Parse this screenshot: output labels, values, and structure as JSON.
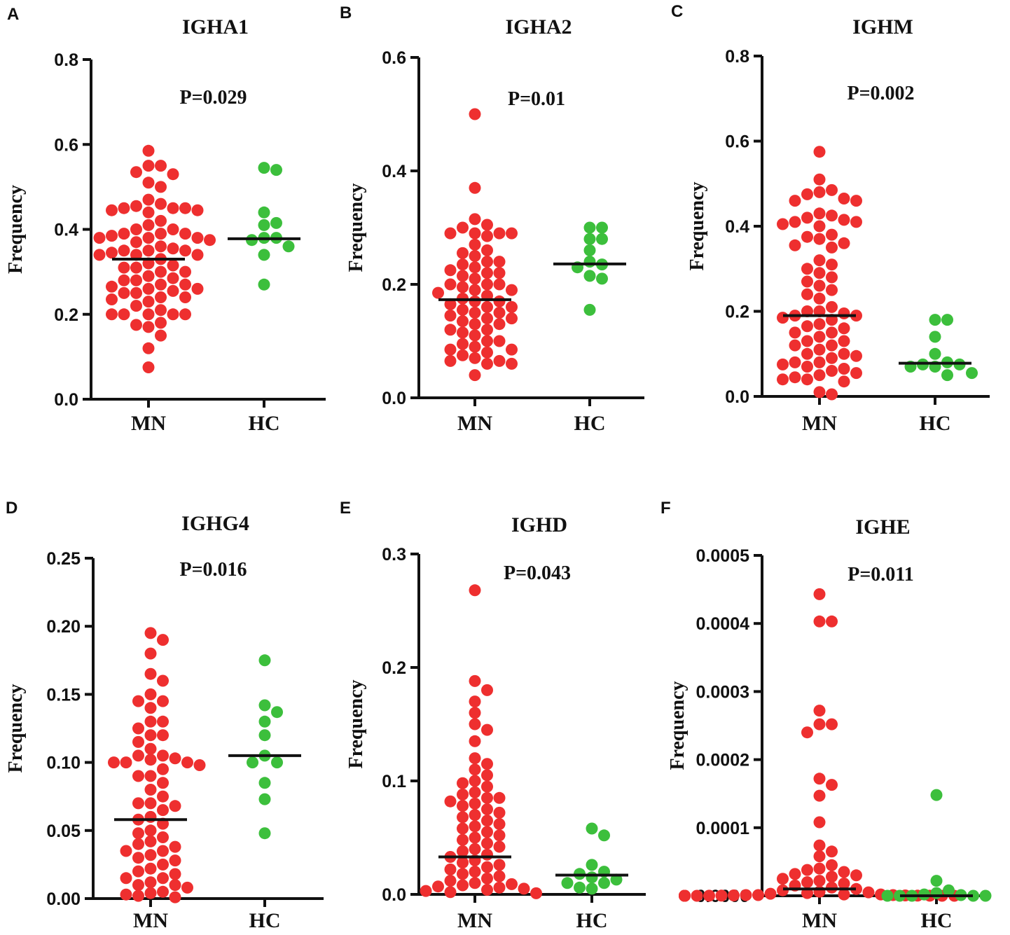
{
  "colors": {
    "MN": "#ee2f2f",
    "HC": "#3cbf3c",
    "axis": "#111111"
  },
  "chart_data": [
    {
      "type": "scatter",
      "panel": "A",
      "title": "IGHA1",
      "p_value": "P=0.029",
      "ylabel": "Frequency",
      "ylim": [
        0,
        0.8
      ],
      "yticks": [
        "0.0",
        "0.2",
        "0.4",
        "0.6",
        "0.8"
      ],
      "categories": [
        "MN",
        "HC"
      ],
      "series": [
        {
          "name": "MN",
          "median": 0.33,
          "values": [
            0.585,
            0.55,
            0.55,
            0.53,
            0.535,
            0.51,
            0.5,
            0.47,
            0.46,
            0.455,
            0.45,
            0.45,
            0.45,
            0.445,
            0.445,
            0.44,
            0.42,
            0.41,
            0.4,
            0.4,
            0.39,
            0.39,
            0.39,
            0.385,
            0.38,
            0.38,
            0.38,
            0.375,
            0.37,
            0.36,
            0.355,
            0.35,
            0.35,
            0.35,
            0.345,
            0.34,
            0.34,
            0.34,
            0.33,
            0.32,
            0.315,
            0.31,
            0.31,
            0.3,
            0.3,
            0.29,
            0.285,
            0.28,
            0.28,
            0.27,
            0.27,
            0.265,
            0.26,
            0.26,
            0.255,
            0.25,
            0.25,
            0.24,
            0.24,
            0.235,
            0.23,
            0.22,
            0.21,
            0.2,
            0.2,
            0.2,
            0.2,
            0.2,
            0.18,
            0.175,
            0.17,
            0.15,
            0.12,
            0.075
          ]
        },
        {
          "name": "HC",
          "median": 0.378,
          "values": [
            0.545,
            0.54,
            0.44,
            0.41,
            0.415,
            0.38,
            0.38,
            0.375,
            0.36,
            0.34,
            0.27
          ]
        }
      ]
    },
    {
      "type": "scatter",
      "panel": "B",
      "title": "IGHA2",
      "p_value": "P=0.01",
      "ylabel": "Frequency",
      "ylim": [
        0,
        0.6
      ],
      "yticks": [
        "0.0",
        "0.2",
        "0.4",
        "0.6"
      ],
      "categories": [
        "MN",
        "HC"
      ],
      "series": [
        {
          "name": "MN",
          "median": 0.173,
          "values": [
            0.5,
            0.37,
            0.315,
            0.305,
            0.3,
            0.29,
            0.29,
            0.29,
            0.29,
            0.285,
            0.27,
            0.26,
            0.255,
            0.25,
            0.24,
            0.24,
            0.235,
            0.23,
            0.225,
            0.22,
            0.22,
            0.215,
            0.21,
            0.2,
            0.2,
            0.2,
            0.195,
            0.19,
            0.19,
            0.185,
            0.18,
            0.175,
            0.17,
            0.17,
            0.165,
            0.16,
            0.16,
            0.155,
            0.15,
            0.15,
            0.145,
            0.14,
            0.14,
            0.135,
            0.13,
            0.13,
            0.12,
            0.12,
            0.115,
            0.11,
            0.1,
            0.1,
            0.095,
            0.09,
            0.085,
            0.085,
            0.08,
            0.075,
            0.07,
            0.065,
            0.065,
            0.06,
            0.06,
            0.04
          ]
        },
        {
          "name": "HC",
          "median": 0.236,
          "values": [
            0.3,
            0.3,
            0.28,
            0.28,
            0.26,
            0.24,
            0.235,
            0.23,
            0.215,
            0.21,
            0.155
          ]
        }
      ]
    },
    {
      "type": "scatter",
      "panel": "C",
      "title": "IGHM",
      "p_value": "P=0.002",
      "ylabel": "Frequency",
      "ylim": [
        0,
        0.8
      ],
      "yticks": [
        "0.0",
        "0.2",
        "0.4",
        "0.6",
        "0.8"
      ],
      "categories": [
        "MN",
        "HC"
      ],
      "series": [
        {
          "name": "MN",
          "median": 0.19,
          "values": [
            0.575,
            0.51,
            0.485,
            0.48,
            0.475,
            0.465,
            0.46,
            0.46,
            0.43,
            0.425,
            0.42,
            0.415,
            0.41,
            0.41,
            0.405,
            0.4,
            0.38,
            0.375,
            0.37,
            0.36,
            0.355,
            0.35,
            0.32,
            0.31,
            0.3,
            0.29,
            0.28,
            0.27,
            0.26,
            0.25,
            0.24,
            0.23,
            0.21,
            0.2,
            0.2,
            0.195,
            0.19,
            0.19,
            0.185,
            0.18,
            0.17,
            0.165,
            0.16,
            0.15,
            0.15,
            0.14,
            0.13,
            0.13,
            0.12,
            0.12,
            0.11,
            0.1,
            0.1,
            0.095,
            0.09,
            0.08,
            0.08,
            0.075,
            0.07,
            0.065,
            0.06,
            0.055,
            0.05,
            0.045,
            0.04,
            0.04,
            0.035,
            0.01,
            0.005
          ]
        },
        {
          "name": "HC",
          "median": 0.078,
          "values": [
            0.18,
            0.18,
            0.14,
            0.1,
            0.08,
            0.075,
            0.075,
            0.07,
            0.07,
            0.055,
            0.05
          ]
        }
      ]
    },
    {
      "type": "scatter",
      "panel": "D",
      "title": "IGHG4",
      "p_value": "P=0.016",
      "ylabel": "Frequency",
      "ylim": [
        0,
        0.25
      ],
      "yticks": [
        "0.00",
        "0.05",
        "0.10",
        "0.15",
        "0.20",
        "0.25"
      ],
      "categories": [
        "MN",
        "HC"
      ],
      "series": [
        {
          "name": "MN",
          "median": 0.058,
          "values": [
            0.195,
            0.19,
            0.18,
            0.165,
            0.16,
            0.15,
            0.145,
            0.145,
            0.14,
            0.13,
            0.13,
            0.125,
            0.12,
            0.12,
            0.115,
            0.11,
            0.105,
            0.105,
            0.103,
            0.102,
            0.1,
            0.1,
            0.1,
            0.098,
            0.095,
            0.09,
            0.09,
            0.085,
            0.08,
            0.075,
            0.07,
            0.07,
            0.068,
            0.065,
            0.06,
            0.058,
            0.055,
            0.05,
            0.048,
            0.045,
            0.042,
            0.04,
            0.038,
            0.035,
            0.035,
            0.032,
            0.03,
            0.028,
            0.025,
            0.022,
            0.02,
            0.018,
            0.015,
            0.015,
            0.012,
            0.01,
            0.01,
            0.008,
            0.005,
            0.004,
            0.003,
            0.002,
            0.001
          ]
        },
        {
          "name": "HC",
          "median": 0.105,
          "values": [
            0.175,
            0.142,
            0.137,
            0.13,
            0.12,
            0.105,
            0.1,
            0.1,
            0.085,
            0.073,
            0.048
          ]
        }
      ]
    },
    {
      "type": "scatter",
      "panel": "E",
      "title": "IGHD",
      "p_value": "P=0.043",
      "ylabel": "Frequency",
      "ylim": [
        0,
        0.3
      ],
      "yticks": [
        "0.0",
        "0.1",
        "0.2",
        "0.3"
      ],
      "categories": [
        "MN",
        "HC"
      ],
      "series": [
        {
          "name": "MN",
          "median": 0.033,
          "values": [
            0.268,
            0.188,
            0.18,
            0.17,
            0.16,
            0.15,
            0.145,
            0.135,
            0.12,
            0.115,
            0.11,
            0.105,
            0.1,
            0.098,
            0.095,
            0.09,
            0.088,
            0.085,
            0.085,
            0.082,
            0.08,
            0.078,
            0.075,
            0.072,
            0.07,
            0.068,
            0.065,
            0.062,
            0.06,
            0.058,
            0.055,
            0.052,
            0.05,
            0.048,
            0.045,
            0.042,
            0.04,
            0.038,
            0.035,
            0.033,
            0.03,
            0.028,
            0.026,
            0.024,
            0.022,
            0.02,
            0.018,
            0.016,
            0.014,
            0.012,
            0.01,
            0.009,
            0.008,
            0.007,
            0.006,
            0.005,
            0.004,
            0.003,
            0.002,
            0.001
          ]
        },
        {
          "name": "HC",
          "median": 0.017,
          "values": [
            0.058,
            0.052,
            0.026,
            0.02,
            0.018,
            0.015,
            0.013,
            0.01,
            0.01,
            0.006,
            0.005
          ]
        }
      ]
    },
    {
      "type": "scatter",
      "panel": "F",
      "title": "IGHE",
      "p_value": "P=0.011",
      "ylabel": "Frequency",
      "ylim": [
        0,
        0.0005
      ],
      "yticks": [
        "0.0000",
        "0.0001",
        "0.0002",
        "0.0003",
        "0.0004",
        "0.0005"
      ],
      "categories": [
        "MN",
        "HC"
      ],
      "series": [
        {
          "name": "MN",
          "median": 1e-05,
          "values": [
            0.000443,
            0.000403,
            0.000403,
            0.000272,
            0.000252,
            0.000252,
            0.00024,
            0.000172,
            0.000163,
            0.000147,
            0.000108,
            7.4e-05,
            6.5e-05,
            5.8e-05,
            4.5e-05,
            4e-05,
            3.8e-05,
            3.5e-05,
            3.2e-05,
            3e-05,
            2.8e-05,
            2.5e-05,
            2.2e-05,
            2e-05,
            1.8e-05,
            1.5e-05,
            1.2e-05,
            1e-05,
            8e-06,
            6e-06,
            5e-06,
            4e-06,
            3e-06,
            2e-06,
            2e-06,
            1e-06,
            1e-06,
            1e-06,
            5e-07,
            5e-07,
            2e-07,
            2e-07,
            1e-07,
            1e-07,
            0.0,
            0.0,
            0.0,
            0.0,
            0.0,
            0.0,
            0.0,
            0.0,
            0.0,
            0.0,
            0.0,
            0.0,
            0.0,
            0.0,
            0.0,
            0.0
          ]
        },
        {
          "name": "HC",
          "median": 0.0,
          "values": [
            0.000148,
            2.2e-05,
            8e-06,
            4e-06,
            2e-06,
            1e-06,
            0.0,
            0.0,
            0.0,
            0.0,
            0.0
          ]
        }
      ]
    }
  ]
}
